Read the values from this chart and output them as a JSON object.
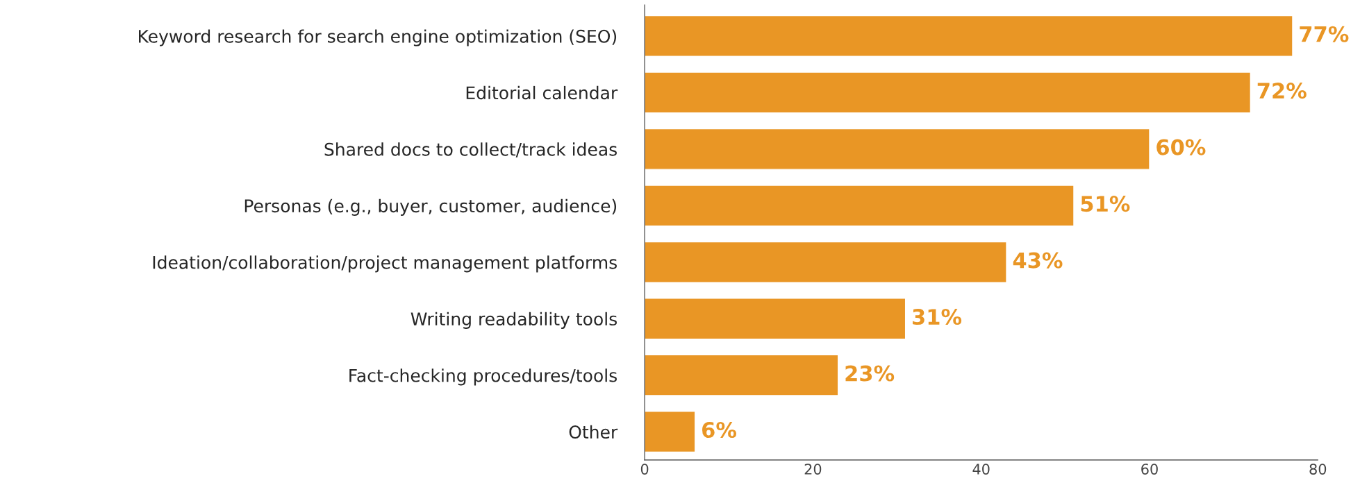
{
  "chart_data": {
    "type": "bar",
    "orientation": "horizontal",
    "categories": [
      "Keyword research for search engine optimization (SEO)",
      "Editorial calendar",
      "Shared docs to collect/track ideas",
      "Personas (e.g., buyer, customer, audience)",
      "Ideation/collaboration/project management platforms",
      "Writing readability tools",
      "Fact-checking procedures/tools",
      "Other"
    ],
    "values": [
      77,
      72,
      60,
      51,
      43,
      31,
      23,
      6
    ],
    "value_labels": [
      "77%",
      "72%",
      "60%",
      "51%",
      "43%",
      "31%",
      "23%",
      "6%"
    ],
    "color": "#e99625",
    "xlim": [
      0,
      80
    ],
    "xticks": [
      0,
      20,
      40,
      60,
      80
    ],
    "grid": false,
    "legend": false
  }
}
